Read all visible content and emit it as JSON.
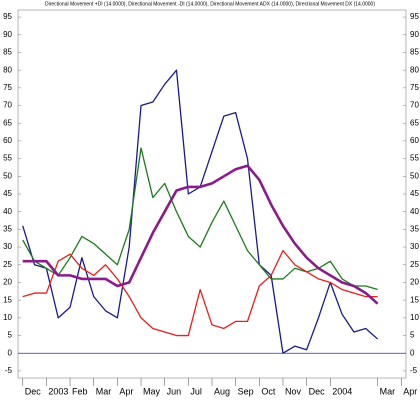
{
  "chart_data": {
    "type": "line",
    "title": "Directional Movement +DI (14.0000), Directional Movement -DI (14.0000), Directional Movement ADX (14.0000), Directional Movement DX (14.0000)",
    "x": [
      0,
      0.5,
      1,
      1.5,
      2,
      2.5,
      3,
      3.5,
      4,
      4.5,
      5,
      5.5,
      6,
      6.5,
      7,
      7.5,
      8,
      8.5,
      9,
      9.5,
      10,
      10.5,
      11,
      11.5,
      12,
      12.5,
      13,
      13.5,
      14,
      14.5,
      15
    ],
    "xlim": [
      -0.2,
      16.2
    ],
    "xticks": [
      {
        "value": 0,
        "label": "Dec"
      },
      {
        "value": 1,
        "label": "2003"
      },
      {
        "value": 2,
        "label": "Feb"
      },
      {
        "value": 3,
        "label": "Mar"
      },
      {
        "value": 4,
        "label": "Apr"
      },
      {
        "value": 5,
        "label": "May"
      },
      {
        "value": 6,
        "label": "Jun"
      },
      {
        "value": 7,
        "label": "Jul"
      },
      {
        "value": 8,
        "label": "Aug"
      },
      {
        "value": 9,
        "label": "Sep"
      },
      {
        "value": 10,
        "label": "Oct"
      },
      {
        "value": 11,
        "label": "Nov"
      },
      {
        "value": 12,
        "label": "Dec"
      },
      {
        "value": 13,
        "label": "2004"
      },
      {
        "value": 15,
        "label": "Mar"
      },
      {
        "value": 16,
        "label": "Apr"
      }
    ],
    "ylim": [
      -7,
      97
    ],
    "yticks": [
      -5,
      0,
      5,
      10,
      15,
      20,
      25,
      30,
      35,
      40,
      45,
      50,
      55,
      60,
      65,
      70,
      75,
      80,
      85,
      90,
      95
    ],
    "reference_line": {
      "value": 0,
      "color": "#2e2eb8"
    },
    "series": [
      {
        "color": "#1a1a8c",
        "width": 1.3,
        "values": [
          36,
          25,
          24,
          10,
          13,
          27,
          16,
          12,
          10,
          30,
          70,
          71,
          76,
          80,
          45,
          47,
          57,
          67,
          68,
          55,
          25,
          22,
          0,
          2,
          1,
          10,
          20,
          11,
          6,
          7,
          4
        ]
      },
      {
        "color": "#1e7a1e",
        "width": 1.3,
        "values": [
          32,
          26,
          24,
          22,
          27,
          33,
          31,
          28,
          25,
          35,
          58,
          44,
          48,
          40,
          33,
          30,
          37,
          43,
          36,
          29,
          25,
          21,
          21,
          24,
          23,
          24,
          26,
          21,
          19,
          19,
          18
        ]
      },
      {
        "color": "#e8201c",
        "width": 1.3,
        "values": [
          16,
          17,
          17,
          26,
          28,
          24,
          22,
          25,
          21,
          16,
          10,
          7,
          6,
          5,
          5,
          18,
          8,
          7,
          9,
          9,
          19,
          22,
          29,
          25,
          23,
          21,
          20,
          18,
          17,
          16,
          16
        ]
      },
      {
        "color": "#8b1a8b",
        "width": 2.6,
        "values": [
          26,
          26,
          26,
          22,
          22,
          21,
          21,
          21,
          19,
          20,
          27,
          34,
          40,
          46,
          47,
          47,
          48,
          50,
          52,
          53,
          49,
          42,
          36,
          31,
          27,
          24,
          22,
          20,
          19,
          17,
          14
        ]
      }
    ]
  }
}
